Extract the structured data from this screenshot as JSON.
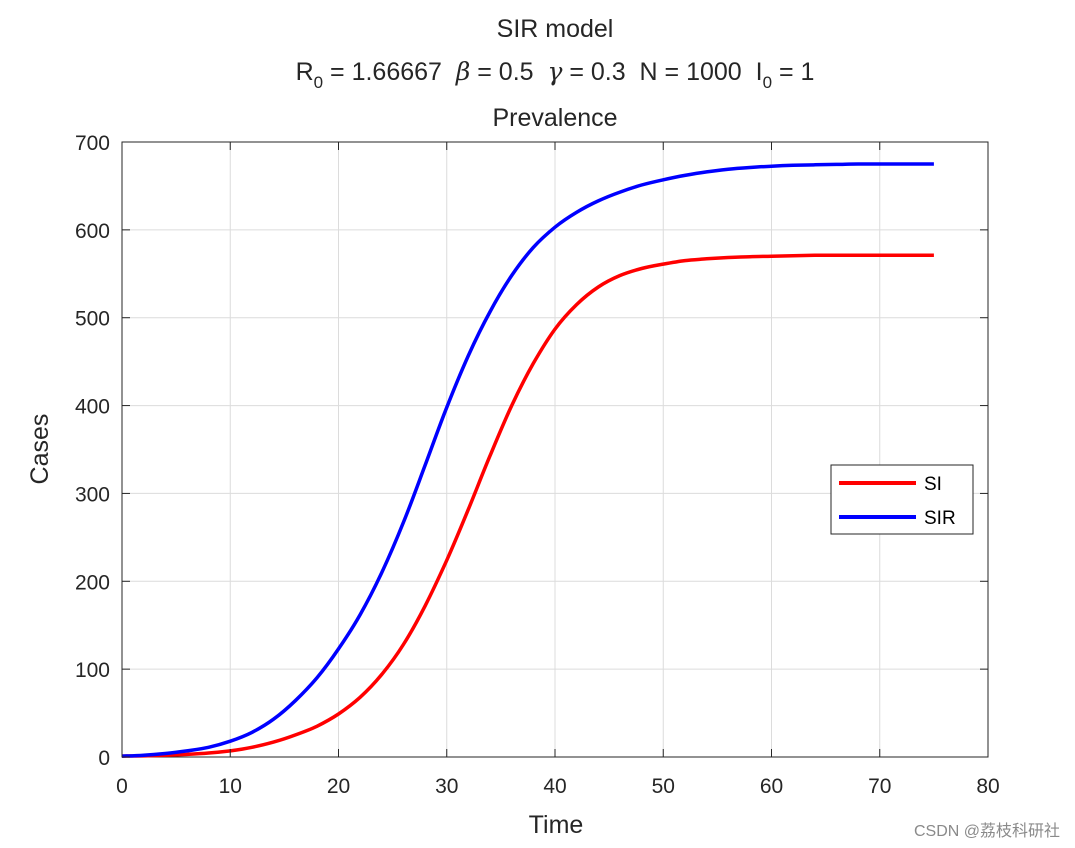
{
  "chart_data": {
    "type": "line",
    "title": "SIR model",
    "subtitle": {
      "r0": "R",
      "r0_sub": "0",
      "r0_val": " = 1.66667  ",
      "beta_sym": "β",
      "beta_val": " = 0.5  ",
      "gamma_sym": "γ",
      "gamma_val": " = 0.3  N = 1000  ",
      "i0": "I",
      "i0_sub": "0",
      "i0_val": " = 1"
    },
    "panel_title": "Prevalence",
    "xlabel": "Time",
    "ylabel": "Cases",
    "xlim": [
      0,
      80
    ],
    "ylim": [
      0,
      700
    ],
    "xticks": [
      0,
      10,
      20,
      30,
      40,
      50,
      60,
      70,
      80
    ],
    "yticks": [
      0,
      100,
      200,
      300,
      400,
      500,
      600,
      700
    ],
    "grid": true,
    "legend_position": "right",
    "series": [
      {
        "name": "SI",
        "color": "#ff0000",
        "x": [
          0,
          2,
          4,
          6,
          8,
          10,
          12,
          14,
          16,
          18,
          20,
          22,
          24,
          26,
          28,
          30,
          32,
          34,
          36,
          38,
          40,
          42,
          44,
          46,
          48,
          50,
          52,
          54,
          56,
          58,
          60,
          62,
          64,
          66,
          68,
          70,
          72,
          75
        ],
        "values": [
          1,
          1.3,
          2,
          3,
          4.5,
          7,
          11,
          17,
          25,
          35,
          49,
          68,
          94,
          128,
          172,
          224,
          282,
          343,
          400,
          448,
          487,
          515,
          535,
          548,
          556,
          561,
          565,
          567,
          568.5,
          569.5,
          570,
          570.5,
          571,
          571,
          571,
          571,
          571,
          571
        ]
      },
      {
        "name": "SIR",
        "color": "#0000ff",
        "x": [
          0,
          2,
          4,
          6,
          8,
          10,
          12,
          14,
          16,
          18,
          20,
          22,
          24,
          26,
          28,
          30,
          32,
          34,
          36,
          38,
          40,
          42,
          44,
          46,
          48,
          50,
          52,
          54,
          56,
          58,
          60,
          62,
          64,
          66,
          68,
          70,
          72,
          75
        ],
        "values": [
          1,
          2,
          4,
          7,
          11,
          18,
          28,
          43,
          64,
          90,
          123,
          162,
          210,
          267,
          332,
          398,
          457,
          507,
          548,
          580,
          603,
          620,
          633,
          643,
          651,
          657,
          662,
          666,
          669,
          671,
          672.5,
          673.5,
          674,
          674.5,
          675,
          675,
          675,
          675
        ]
      }
    ]
  },
  "watermark": "CSDN @荔枝科研社"
}
